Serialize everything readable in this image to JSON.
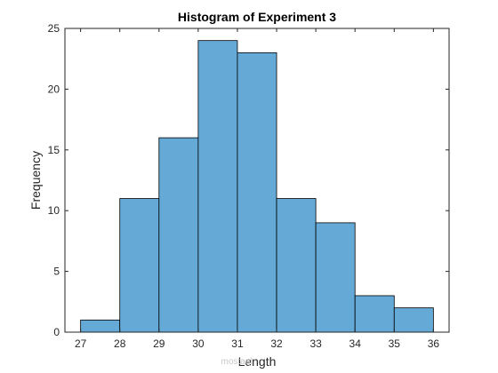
{
  "chart_data": {
    "type": "bar",
    "title": "Histogram of Experiment 3",
    "xlabel": "Length",
    "ylabel": "Frequency",
    "bin_edges": [
      27,
      28,
      29,
      30,
      31,
      32,
      33,
      34,
      35,
      36
    ],
    "values": [
      1,
      11,
      16,
      24,
      23,
      11,
      9,
      3,
      2
    ],
    "xlim": [
      26.6,
      36.4
    ],
    "ylim": [
      0,
      25
    ],
    "xticks": [
      "27",
      "28",
      "29",
      "30",
      "31",
      "32",
      "33",
      "34",
      "35",
      "36"
    ],
    "yticks": [
      "0",
      "5",
      "10",
      "15",
      "20",
      "25"
    ],
    "grid": false,
    "legend": "none",
    "bar_color": "#65aad7",
    "edge_color": "#000000"
  },
  "watermark": {
    "text": "mostaql"
  }
}
